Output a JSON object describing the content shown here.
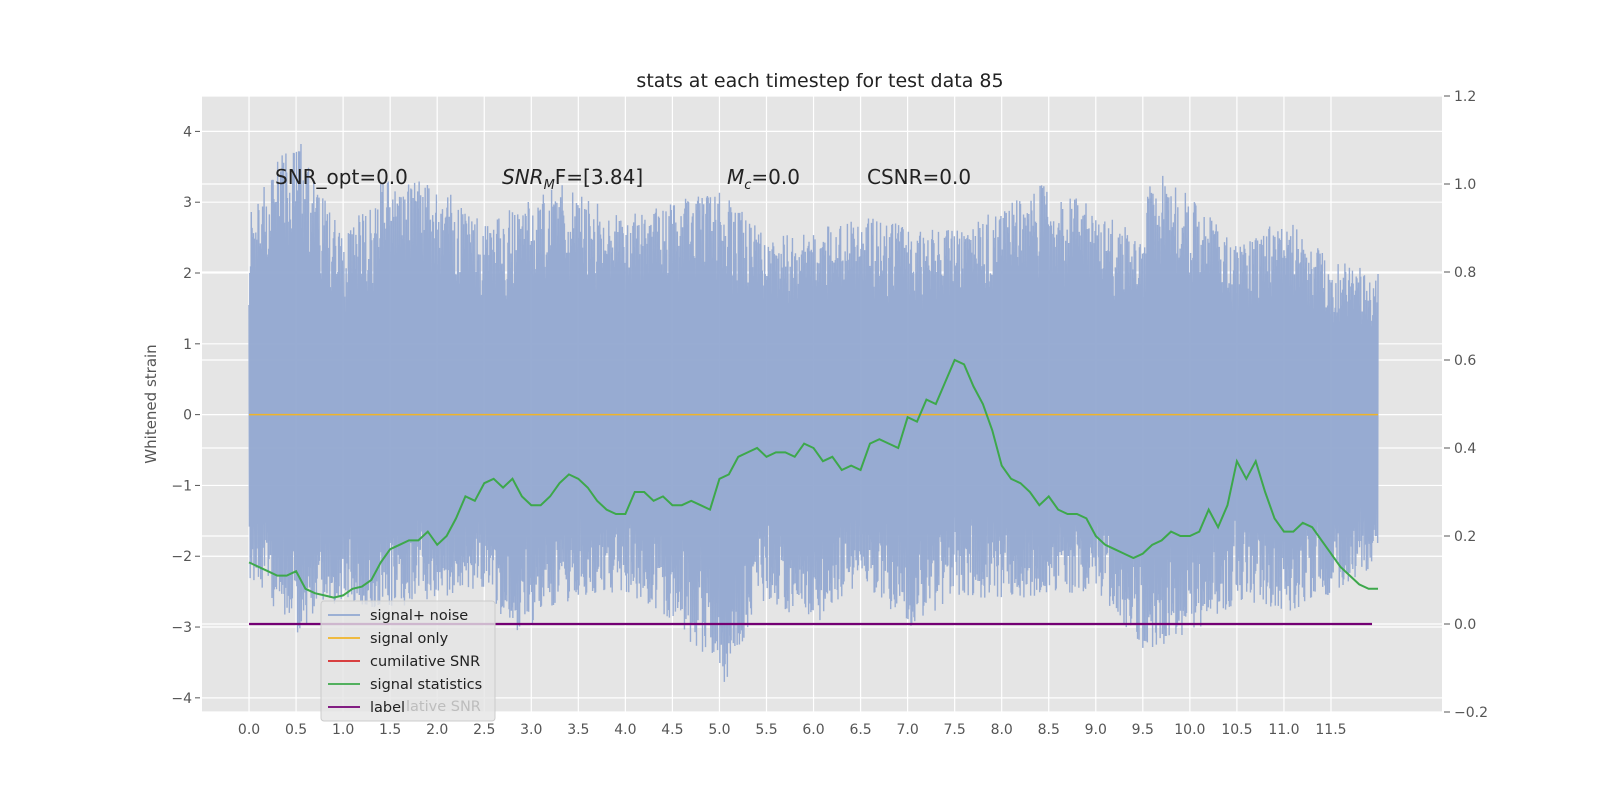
{
  "chart_data": {
    "type": "line",
    "title": "stats at each timestep for test data 85",
    "ylabel": "Whitened strain",
    "xlim": [
      -0.5,
      12.68
    ],
    "ylim": [
      -4.2,
      4.5
    ],
    "y2lim": [
      -0.2,
      1.2
    ],
    "grid": true,
    "legend_placement": "lower-left",
    "x_ticks": [
      0.0,
      0.5,
      1.0,
      1.5,
      2.0,
      2.5,
      3.0,
      3.5,
      4.0,
      4.5,
      5.0,
      5.5,
      6.0,
      6.5,
      7.0,
      7.5,
      8.0,
      8.5,
      9.0,
      9.5,
      10.0,
      10.5,
      11.0,
      11.5
    ],
    "x_tick_labels": [
      "0.0",
      "0.5",
      "1.0",
      "1.5",
      "2.0",
      "2.5",
      "3.0",
      "3.5",
      "4.0",
      "4.5",
      "5.0",
      "5.5",
      "6.0",
      "6.5",
      "7.0",
      "7.5",
      "8.0",
      "8.5",
      "9.0",
      "9.5",
      "10.0",
      "10.5",
      "11.0",
      "11.5"
    ],
    "y_ticks": [
      4,
      3,
      2,
      1,
      0,
      -1,
      -2,
      -3,
      -4
    ],
    "y_tick_labels": [
      "4",
      "3",
      "2",
      "1",
      "0",
      "−1",
      "−2",
      "−3",
      "−4"
    ],
    "y2_ticks": [
      1.2,
      1.0,
      0.8,
      0.6,
      0.4,
      0.2,
      0.0,
      -0.2
    ],
    "y2_tick_labels": [
      "1.2",
      "1.0",
      "0.8",
      "0.6",
      "0.4",
      "0.2",
      "0.0",
      "−0.2"
    ],
    "annotations": [
      "SNR_opt=0.0",
      "SNR",
      "M",
      "F=[3.84]",
      "M",
      "c",
      "=0.0",
      "CSNR=0.0"
    ],
    "series": [
      {
        "name": "signal+ noise",
        "color": "#92a8d1",
        "axis": "left",
        "x_range": [
          0.0,
          12.0
        ],
        "envelope_upper": [
          [
            0.0,
            2.8
          ],
          [
            0.5,
            4.1
          ],
          [
            1.0,
            2.5
          ],
          [
            1.4,
            3.3
          ],
          [
            2.0,
            3.3
          ],
          [
            2.5,
            2.7
          ],
          [
            3.25,
            3.3
          ],
          [
            4.0,
            2.8
          ],
          [
            5.0,
            3.2
          ],
          [
            5.5,
            2.5
          ],
          [
            6.0,
            2.6
          ],
          [
            6.5,
            2.8
          ],
          [
            7.5,
            2.6
          ],
          [
            8.5,
            3.3
          ],
          [
            9.5,
            2.5
          ],
          [
            9.6,
            3.65
          ],
          [
            10.5,
            2.4
          ],
          [
            11.0,
            2.8
          ],
          [
            11.5,
            2.2
          ],
          [
            12.0,
            2.0
          ]
        ],
        "envelope_lower": [
          [
            0.0,
            -2.3
          ],
          [
            0.5,
            -3.1
          ],
          [
            1.0,
            -2.6
          ],
          [
            1.5,
            -2.8
          ],
          [
            2.0,
            -2.6
          ],
          [
            2.5,
            -2.5
          ],
          [
            2.8,
            -3.1
          ],
          [
            3.5,
            -2.6
          ],
          [
            4.0,
            -2.5
          ],
          [
            4.5,
            -2.9
          ],
          [
            5.05,
            -3.8
          ],
          [
            5.5,
            -2.6
          ],
          [
            6.0,
            -3.0
          ],
          [
            6.5,
            -2.4
          ],
          [
            7.05,
            -3.0
          ],
          [
            7.5,
            -2.6
          ],
          [
            8.0,
            -2.6
          ],
          [
            8.5,
            -2.6
          ],
          [
            9.0,
            -2.5
          ],
          [
            9.5,
            -3.35
          ],
          [
            10.0,
            -3.1
          ],
          [
            10.5,
            -2.7
          ],
          [
            11.0,
            -2.8
          ],
          [
            11.5,
            -2.6
          ],
          [
            12.0,
            -2.1
          ]
        ]
      },
      {
        "name": "signal only",
        "color": "#f0b428",
        "axis": "left",
        "x": [
          0.0,
          12.0
        ],
        "y": [
          0.0,
          0.0
        ]
      },
      {
        "name": "cumilative SNR",
        "color": "#d62728",
        "axis": "right",
        "x": [],
        "y": []
      },
      {
        "name": "signal statistics",
        "color": "#3da84b",
        "axis": "right",
        "x": [
          0.0,
          0.1,
          0.2,
          0.3,
          0.4,
          0.5,
          0.6,
          0.7,
          0.8,
          0.9,
          1.0,
          1.1,
          1.2,
          1.3,
          1.4,
          1.5,
          1.6,
          1.7,
          1.8,
          1.9,
          2.0,
          2.1,
          2.2,
          2.3,
          2.4,
          2.5,
          2.6,
          2.7,
          2.8,
          2.9,
          3.0,
          3.1,
          3.2,
          3.3,
          3.4,
          3.5,
          3.6,
          3.7,
          3.8,
          3.9,
          4.0,
          4.1,
          4.2,
          4.3,
          4.4,
          4.5,
          4.6,
          4.7,
          4.8,
          4.9,
          5.0,
          5.1,
          5.2,
          5.3,
          5.4,
          5.5,
          5.6,
          5.7,
          5.8,
          5.9,
          6.0,
          6.1,
          6.2,
          6.3,
          6.4,
          6.5,
          6.6,
          6.7,
          6.8,
          6.9,
          7.0,
          7.1,
          7.2,
          7.3,
          7.4,
          7.5,
          7.6,
          7.7,
          7.8,
          7.9,
          8.0,
          8.1,
          8.2,
          8.3,
          8.4,
          8.5,
          8.6,
          8.7,
          8.8,
          8.9,
          9.0,
          9.1,
          9.2,
          9.3,
          9.4,
          9.5,
          9.6,
          9.7,
          9.8,
          9.9,
          10.0,
          10.1,
          10.2,
          10.3,
          10.4,
          10.5,
          10.6,
          10.7,
          10.8,
          10.9,
          11.0,
          11.1,
          11.2,
          11.3,
          11.4,
          11.5,
          11.6,
          11.7,
          11.8,
          11.9,
          12.0
        ],
        "y": [
          0.14,
          0.13,
          0.12,
          0.11,
          0.11,
          0.12,
          0.08,
          0.07,
          0.065,
          0.06,
          0.065,
          0.08,
          0.085,
          0.1,
          0.14,
          0.17,
          0.18,
          0.19,
          0.19,
          0.21,
          0.18,
          0.2,
          0.24,
          0.29,
          0.28,
          0.32,
          0.33,
          0.31,
          0.33,
          0.29,
          0.27,
          0.27,
          0.29,
          0.32,
          0.34,
          0.33,
          0.31,
          0.28,
          0.26,
          0.25,
          0.25,
          0.3,
          0.3,
          0.28,
          0.29,
          0.27,
          0.27,
          0.28,
          0.27,
          0.26,
          0.33,
          0.34,
          0.38,
          0.39,
          0.4,
          0.38,
          0.39,
          0.39,
          0.38,
          0.41,
          0.4,
          0.37,
          0.38,
          0.35,
          0.36,
          0.35,
          0.41,
          0.42,
          0.41,
          0.4,
          0.47,
          0.46,
          0.51,
          0.5,
          0.55,
          0.6,
          0.59,
          0.54,
          0.5,
          0.44,
          0.36,
          0.33,
          0.32,
          0.3,
          0.27,
          0.29,
          0.26,
          0.25,
          0.25,
          0.24,
          0.2,
          0.18,
          0.17,
          0.16,
          0.15,
          0.16,
          0.18,
          0.19,
          0.21,
          0.2,
          0.2,
          0.21,
          0.26,
          0.22,
          0.27,
          0.37,
          0.33,
          0.37,
          0.3,
          0.24,
          0.21,
          0.21,
          0.23,
          0.22,
          0.19,
          0.16,
          0.13,
          0.11,
          0.09,
          0.08,
          0.08
        ]
      },
      {
        "name": "label",
        "color": "#730073",
        "axis": "right",
        "x": [
          0.0,
          12.0
        ],
        "y": [
          0.0,
          0.0
        ]
      }
    ],
    "legend": {
      "entries": [
        "signal+ noise",
        "signal only",
        "cumilative SNR",
        "signal statistics",
        "label"
      ],
      "occluded_text": "lative SNR"
    }
  }
}
